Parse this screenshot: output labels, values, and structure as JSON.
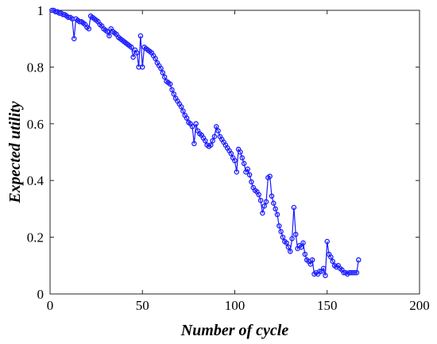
{
  "chart_data": {
    "type": "line",
    "xlabel": "Number of cycle",
    "ylabel": "Expected utility",
    "xlim": [
      0,
      200
    ],
    "ylim": [
      0,
      1
    ],
    "xticks": [
      0,
      50,
      100,
      150,
      200
    ],
    "yticks": [
      0,
      0.2,
      0.4,
      0.6,
      0.8,
      1
    ],
    "grid": false,
    "series_color": "#1a1aff",
    "marker": "circle-open",
    "series": [
      {
        "x": [
          1,
          2,
          3,
          4,
          5,
          6,
          7,
          8,
          9,
          10,
          11,
          12,
          13,
          14,
          15,
          16,
          17,
          18,
          19,
          20,
          21,
          22,
          23,
          24,
          25,
          26,
          27,
          28,
          29,
          30,
          31,
          32,
          33,
          34,
          35,
          36,
          37,
          38,
          39,
          40,
          41,
          42,
          43,
          44,
          45,
          46,
          47,
          48,
          49,
          50,
          51,
          52,
          53,
          54,
          55,
          56,
          57,
          58,
          59,
          60,
          61,
          62,
          63,
          64,
          65,
          66,
          67,
          68,
          69,
          70,
          71,
          72,
          73,
          74,
          75,
          76,
          77,
          78,
          79,
          80,
          81,
          82,
          83,
          84,
          85,
          86,
          87,
          88,
          89,
          90,
          91,
          92,
          93,
          94,
          95,
          96,
          97,
          98,
          99,
          100,
          101,
          102,
          103,
          104,
          105,
          106,
          107,
          108,
          109,
          110,
          111,
          112,
          113,
          114,
          115,
          116,
          117,
          118,
          119,
          120,
          121,
          122,
          123,
          124,
          125,
          126,
          127,
          128,
          129,
          130,
          131,
          132,
          133,
          134,
          135,
          136,
          137,
          138,
          139,
          140,
          141,
          142,
          143,
          144,
          145,
          146,
          147,
          148,
          149,
          150,
          151,
          152,
          153,
          154,
          155,
          156,
          157,
          158,
          159,
          160,
          161,
          162,
          163,
          164,
          165,
          166,
          167
        ],
        "y": [
          1.0,
          1.0,
          0.995,
          0.995,
          0.99,
          0.99,
          0.985,
          0.985,
          0.98,
          0.975,
          0.975,
          0.97,
          0.9,
          0.97,
          0.965,
          0.96,
          0.96,
          0.955,
          0.95,
          0.94,
          0.935,
          0.98,
          0.975,
          0.97,
          0.965,
          0.96,
          0.95,
          0.945,
          0.935,
          0.93,
          0.925,
          0.91,
          0.935,
          0.925,
          0.92,
          0.915,
          0.905,
          0.9,
          0.895,
          0.89,
          0.885,
          0.88,
          0.875,
          0.87,
          0.835,
          0.86,
          0.85,
          0.8,
          0.91,
          0.8,
          0.87,
          0.865,
          0.86,
          0.855,
          0.85,
          0.84,
          0.83,
          0.815,
          0.805,
          0.795,
          0.78,
          0.765,
          0.75,
          0.745,
          0.74,
          0.72,
          0.705,
          0.69,
          0.68,
          0.67,
          0.66,
          0.645,
          0.63,
          0.62,
          0.605,
          0.6,
          0.59,
          0.53,
          0.6,
          0.575,
          0.565,
          0.56,
          0.55,
          0.54,
          0.525,
          0.52,
          0.525,
          0.54,
          0.555,
          0.59,
          0.575,
          0.555,
          0.545,
          0.535,
          0.525,
          0.515,
          0.505,
          0.495,
          0.48,
          0.47,
          0.43,
          0.51,
          0.5,
          0.48,
          0.46,
          0.43,
          0.44,
          0.42,
          0.395,
          0.375,
          0.365,
          0.36,
          0.35,
          0.33,
          0.285,
          0.31,
          0.325,
          0.41,
          0.415,
          0.345,
          0.32,
          0.3,
          0.28,
          0.24,
          0.22,
          0.2,
          0.185,
          0.18,
          0.165,
          0.15,
          0.195,
          0.305,
          0.21,
          0.16,
          0.17,
          0.165,
          0.18,
          0.14,
          0.12,
          0.115,
          0.105,
          0.12,
          0.07,
          0.075,
          0.07,
          0.08,
          0.08,
          0.09,
          0.065,
          0.185,
          0.14,
          0.13,
          0.115,
          0.1,
          0.095,
          0.1,
          0.09,
          0.085,
          0.075,
          0.075,
          0.07,
          0.075,
          0.075,
          0.075,
          0.075,
          0.075,
          0.12
        ]
      }
    ]
  }
}
